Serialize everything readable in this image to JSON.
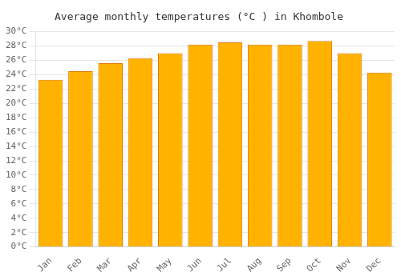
{
  "chart_data": {
    "type": "bar",
    "title": "Average monthly temperatures (°C ) in Khombole",
    "categories": [
      "Jan",
      "Feb",
      "Mar",
      "Apr",
      "May",
      "Jun",
      "Jul",
      "Aug",
      "Sep",
      "Oct",
      "Nov",
      "Dec"
    ],
    "values": [
      23.3,
      24.5,
      25.6,
      26.3,
      27.0,
      28.2,
      28.5,
      28.2,
      28.2,
      28.7,
      27.0,
      24.3
    ],
    "color": "#FFB300",
    "ylim": [
      0,
      30
    ],
    "yticks": [
      {
        "value": 0,
        "label": "0°C"
      },
      {
        "value": 2,
        "label": "2°C"
      },
      {
        "value": 4,
        "label": "4°C"
      },
      {
        "value": 6,
        "label": "6°C"
      },
      {
        "value": 8,
        "label": "8°C"
      },
      {
        "value": 10,
        "label": "10°C"
      },
      {
        "value": 12,
        "label": "12°C"
      },
      {
        "value": 14,
        "label": "14°C"
      },
      {
        "value": 16,
        "label": "16°C"
      },
      {
        "value": 18,
        "label": "18°C"
      },
      {
        "value": 20,
        "label": "20°C"
      },
      {
        "value": 22,
        "label": "22°C"
      },
      {
        "value": 24,
        "label": "24°C"
      },
      {
        "value": 26,
        "label": "26°C"
      },
      {
        "value": 28,
        "label": "28°C"
      },
      {
        "value": 30,
        "label": "30°C"
      }
    ],
    "grid": true
  }
}
